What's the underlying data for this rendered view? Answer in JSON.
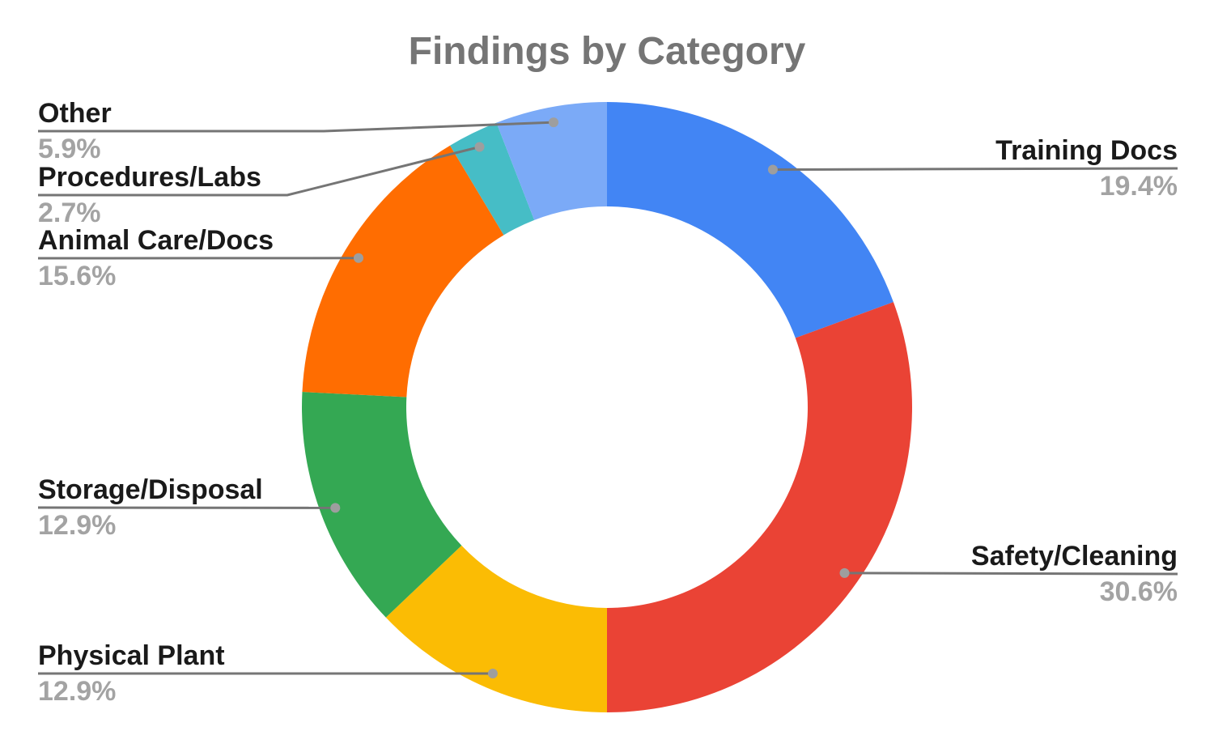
{
  "chart_data": {
    "type": "pie",
    "variant": "donut",
    "title": "Findings by Category",
    "direction": "clockwise",
    "start_angle_deg": 0,
    "legend_position": "labeled-callouts",
    "slices": [
      {
        "label": "Training Docs",
        "value": 19.4,
        "pct_label": "19.4%",
        "color": "#4285f4"
      },
      {
        "label": "Safety/Cleaning",
        "value": 30.6,
        "pct_label": "30.6%",
        "color": "#ea4335"
      },
      {
        "label": "Physical Plant",
        "value": 12.9,
        "pct_label": "12.9%",
        "color": "#fbbc04"
      },
      {
        "label": "Storage/Disposal",
        "value": 12.9,
        "pct_label": "12.9%",
        "color": "#34a853"
      },
      {
        "label": "Animal Care/Docs",
        "value": 15.6,
        "pct_label": "15.6%",
        "color": "#ff6d01"
      },
      {
        "label": "Procedures/Labs",
        "value": 2.7,
        "pct_label": "2.7%",
        "color": "#46bdc6"
      },
      {
        "label": "Other",
        "value": 5.9,
        "pct_label": "5.9%",
        "color": "#7baaf7"
      }
    ],
    "style_colors": {
      "title_text": "#757575",
      "label_text": "#1a1a1a",
      "percent_text": "#a3a3a3",
      "leader_line": "#757575",
      "leader_dot": "#9e9e9e",
      "background": "#ffffff"
    }
  }
}
